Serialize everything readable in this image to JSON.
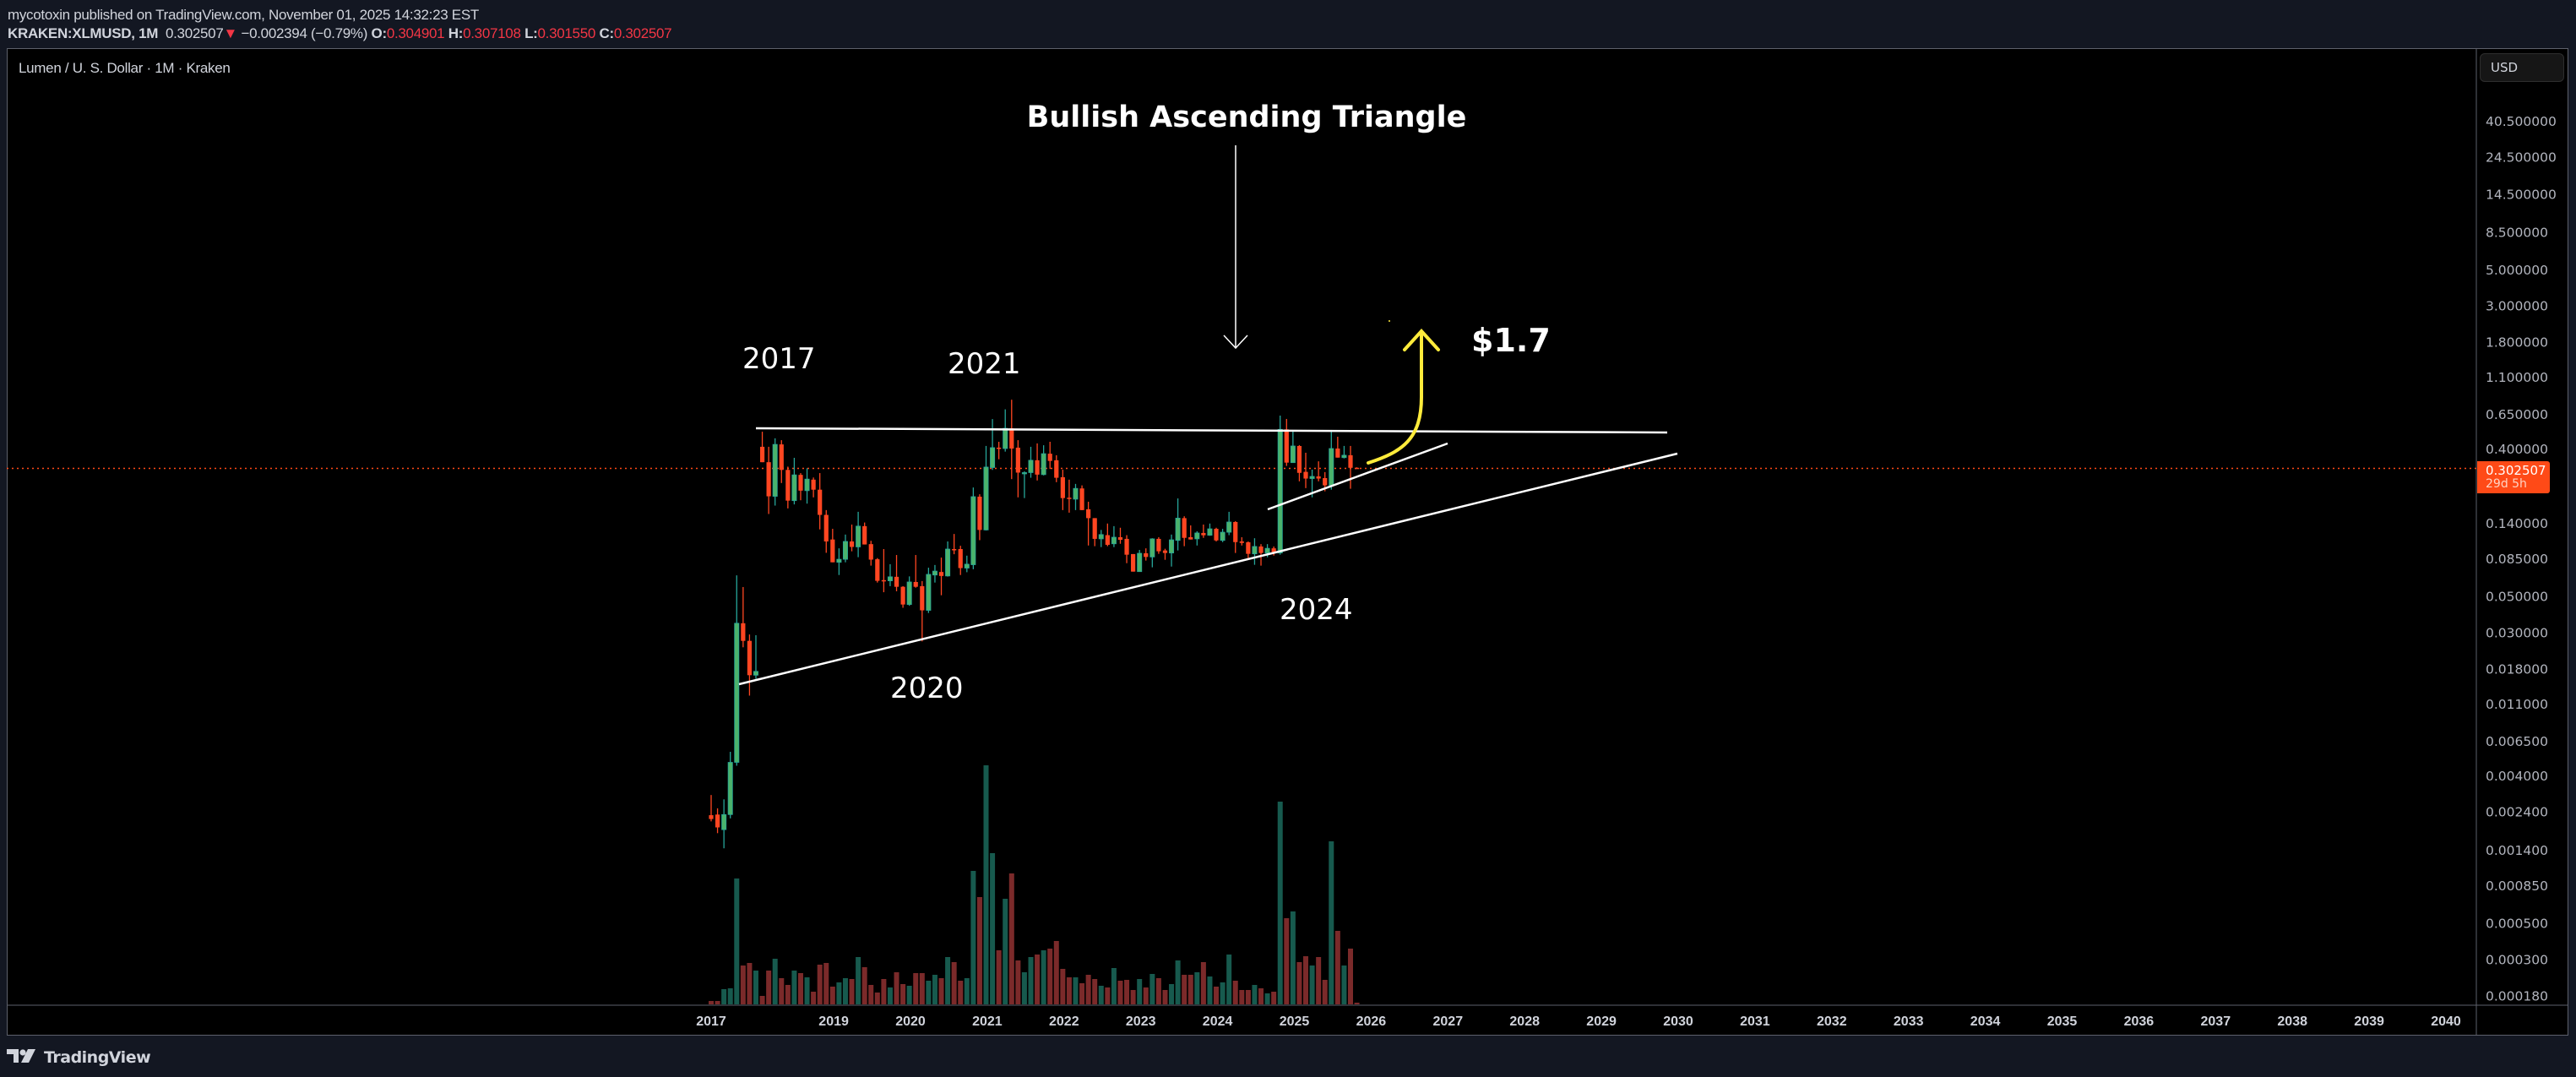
{
  "header": {
    "published": "mycotoxin published on TradingView.com, November 01, 2025 14:32:23 EST",
    "symbol": "KRAKEN:XLMUSD, 1M",
    "last": "0.302507",
    "change": "−0.002394 (−0.79%)",
    "o_label": "O:",
    "o": "0.304901",
    "h_label": "H:",
    "h": "0.307108",
    "l_label": "L:",
    "l": "0.301550",
    "c_label": "C:",
    "c": "0.302507"
  },
  "legend": "Lumen / U. S. Dollar · 1M · Kraken",
  "currency_button": "USD",
  "price_badge": {
    "price": "0.302507",
    "countdown": "29d 5h"
  },
  "footer": {
    "logo": "TradingView"
  },
  "colors": {
    "up": "#4bb36b",
    "up_wick": "#26a69a",
    "down": "#ff4621",
    "vol_up": "#175a4e",
    "vol_down": "#7b2a2a",
    "price_line": "#ff4a17",
    "annotation": "#ffffff",
    "arrow": "#ffeb3b"
  },
  "annotations": {
    "title": "Bullish Ascending Triangle",
    "target": "$1.7",
    "y2017": "2017",
    "y2021": "2021",
    "y2020": "2020",
    "y2024": "2024"
  },
  "chart_data": {
    "type": "candlestick",
    "interval": "1M",
    "scale": "log",
    "price_axis": [
      "40.500000",
      "24.500000",
      "14.500000",
      "8.500000",
      "5.000000",
      "3.000000",
      "1.800000",
      "1.100000",
      "0.650000",
      "0.400000",
      "0.140000",
      "0.085000",
      "0.050000",
      "0.030000",
      "0.018000",
      "0.011000",
      "0.006500",
      "0.004000",
      "0.002400",
      "0.001400",
      "0.000850",
      "0.000500",
      "0.000300",
      "0.000180"
    ],
    "time_axis": [
      "2017",
      "2019",
      "2020",
      "2021",
      "2022",
      "2023",
      "2024",
      "2025",
      "2026",
      "2027",
      "2028",
      "2029",
      "2030",
      "2031",
      "2032",
      "2033",
      "2034",
      "2035",
      "2036",
      "2037",
      "2038",
      "2039",
      "2040"
    ],
    "last_price": 0.302507,
    "ohlc": [
      [
        0.00228,
        0.00303,
        0.00209,
        0.00216
      ],
      [
        0.0023,
        0.00251,
        0.00177,
        0.00192
      ],
      [
        0.00186,
        0.00285,
        0.00143,
        0.0023
      ],
      [
        0.0023,
        0.00557,
        0.00218,
        0.0048
      ],
      [
        0.0048,
        0.067,
        0.00458,
        0.0341
      ],
      [
        0.0341,
        0.0568,
        0.0243,
        0.0266
      ],
      [
        0.0266,
        0.0291,
        0.0123,
        0.0164
      ],
      [
        0.0164,
        0.0288,
        0.0156,
        0.0173
      ],
      [
        0.41,
        0.507,
        0.33,
        0.33
      ],
      [
        0.33,
        0.41,
        0.159,
        0.204
      ],
      [
        0.204,
        0.462,
        0.179,
        0.424
      ],
      [
        0.424,
        0.45,
        0.246,
        0.296
      ],
      [
        0.296,
        0.31,
        0.172,
        0.192
      ],
      [
        0.192,
        0.351,
        0.182,
        0.276
      ],
      [
        0.276,
        0.283,
        0.193,
        0.221
      ],
      [
        0.221,
        0.303,
        0.184,
        0.26
      ],
      [
        0.258,
        0.266,
        0.201,
        0.224
      ],
      [
        0.224,
        0.283,
        0.128,
        0.157
      ],
      [
        0.157,
        0.168,
        0.092,
        0.108
      ],
      [
        0.111,
        0.129,
        0.0805,
        0.0805
      ],
      [
        0.0805,
        0.098,
        0.0673,
        0.084
      ],
      [
        0.084,
        0.119,
        0.0805,
        0.108
      ],
      [
        0.108,
        0.137,
        0.094,
        0.1
      ],
      [
        0.1,
        0.164,
        0.0865,
        0.134
      ],
      [
        0.134,
        0.141,
        0.1035,
        0.1035
      ],
      [
        0.104,
        0.109,
        0.0768,
        0.0836
      ],
      [
        0.084,
        0.0854,
        0.0605,
        0.062
      ],
      [
        0.0626,
        0.097,
        0.0528,
        0.062
      ],
      [
        0.062,
        0.0784,
        0.0575,
        0.0656
      ],
      [
        0.0656,
        0.0892,
        0.0535,
        0.057
      ],
      [
        0.057,
        0.0575,
        0.0424,
        0.0444
      ],
      [
        0.0444,
        0.066,
        0.0436,
        0.061
      ],
      [
        0.061,
        0.0892,
        0.0563,
        0.057
      ],
      [
        0.0575,
        0.0618,
        0.0264,
        0.0409
      ],
      [
        0.0409,
        0.0746,
        0.0394,
        0.0679
      ],
      [
        0.0673,
        0.0775,
        0.0605,
        0.0711
      ],
      [
        0.0702,
        0.086,
        0.0506,
        0.0664
      ],
      [
        0.0664,
        0.108,
        0.0658,
        0.097
      ],
      [
        0.097,
        0.12,
        0.0902,
        0.0957
      ],
      [
        0.097,
        0.1016,
        0.0673,
        0.0742
      ],
      [
        0.0742,
        0.0884,
        0.07,
        0.0784
      ],
      [
        0.0778,
        0.231,
        0.073,
        0.203
      ],
      [
        0.203,
        0.21,
        0.11,
        0.127
      ],
      [
        0.127,
        0.415,
        0.126,
        0.308
      ],
      [
        0.306,
        0.606,
        0.296,
        0.405
      ],
      [
        0.405,
        0.44,
        0.344,
        0.4
      ],
      [
        0.4,
        0.695,
        0.383,
        0.532
      ],
      [
        0.532,
        0.796,
        0.26,
        0.4
      ],
      [
        0.405,
        0.45,
        0.201,
        0.285
      ],
      [
        0.282,
        0.29,
        0.199,
        0.285
      ],
      [
        0.285,
        0.41,
        0.265,
        0.339
      ],
      [
        0.339,
        0.43,
        0.255,
        0.277
      ],
      [
        0.277,
        0.419,
        0.274,
        0.372
      ],
      [
        0.372,
        0.44,
        0.3,
        0.336
      ],
      [
        0.339,
        0.364,
        0.249,
        0.265
      ],
      [
        0.267,
        0.297,
        0.168,
        0.199
      ],
      [
        0.2,
        0.258,
        0.162,
        0.199
      ],
      [
        0.196,
        0.243,
        0.168,
        0.228
      ],
      [
        0.228,
        0.238,
        0.168,
        0.168
      ],
      [
        0.17,
        0.189,
        0.102,
        0.15
      ],
      [
        0.15,
        0.15,
        0.101,
        0.112
      ],
      [
        0.112,
        0.127,
        0.0997,
        0.119
      ],
      [
        0.118,
        0.139,
        0.101,
        0.103
      ],
      [
        0.1045,
        0.134,
        0.0997,
        0.1146
      ],
      [
        0.1146,
        0.131,
        0.1045,
        0.1105
      ],
      [
        0.112,
        0.118,
        0.0795,
        0.0896
      ],
      [
        0.0904,
        0.0904,
        0.0706,
        0.0706
      ],
      [
        0.0706,
        0.0958,
        0.0706,
        0.0914
      ],
      [
        0.0914,
        0.098,
        0.0825,
        0.0868
      ],
      [
        0.0868,
        0.113,
        0.075,
        0.112
      ],
      [
        0.112,
        0.1146,
        0.0907,
        0.094
      ],
      [
        0.0951,
        0.0974,
        0.0834,
        0.0918
      ],
      [
        0.0918,
        0.119,
        0.0758,
        0.1105
      ],
      [
        0.1096,
        0.198,
        0.0951,
        0.15
      ],
      [
        0.15,
        0.154,
        0.101,
        0.1136
      ],
      [
        0.1146,
        0.1354,
        0.111,
        0.111
      ],
      [
        0.112,
        0.1246,
        0.102,
        0.1217
      ],
      [
        0.1217,
        0.137,
        0.1136,
        0.1178
      ],
      [
        0.1178,
        0.139,
        0.117,
        0.129
      ],
      [
        0.129,
        0.131,
        0.108,
        0.1096
      ],
      [
        0.1096,
        0.129,
        0.107,
        0.123
      ],
      [
        0.123,
        0.164,
        0.118,
        0.142
      ],
      [
        0.142,
        0.1437,
        0.0918,
        0.107
      ],
      [
        0.108,
        0.1146,
        0.102,
        0.1058
      ],
      [
        0.1067,
        0.108,
        0.0854,
        0.0907
      ],
      [
        0.0907,
        0.113,
        0.0777,
        0.1006
      ],
      [
        0.1006,
        0.104,
        0.0768,
        0.0918
      ],
      [
        0.0918,
        0.104,
        0.0864,
        0.098
      ],
      [
        0.098,
        0.1006,
        0.0885,
        0.0918
      ],
      [
        0.0918,
        0.636,
        0.0896,
        0.524
      ],
      [
        0.524,
        0.607,
        0.313,
        0.328
      ],
      [
        0.328,
        0.514,
        0.328,
        0.4146
      ],
      [
        0.4146,
        0.42,
        0.252,
        0.284
      ],
      [
        0.288,
        0.377,
        0.229,
        0.262
      ],
      [
        0.262,
        0.297,
        0.201,
        0.27
      ],
      [
        0.27,
        0.334,
        0.252,
        0.262
      ],
      [
        0.2637,
        0.287,
        0.219,
        0.238
      ],
      [
        0.238,
        0.52,
        0.224,
        0.4
      ],
      [
        0.4,
        0.4725,
        0.352,
        0.352
      ],
      [
        0.352,
        0.415,
        0.348,
        0.364
      ],
      [
        0.364,
        0.415,
        0.227,
        0.3049
      ],
      [
        0.304901,
        0.307108,
        0.30155,
        0.302507
      ]
    ],
    "volume_relative": [
      12,
      12,
      54,
      57,
      447,
      138,
      147,
      120,
      30,
      120,
      162,
      93,
      69,
      120,
      111,
      96,
      45,
      141,
      147,
      63,
      78,
      93,
      90,
      168,
      132,
      69,
      42,
      90,
      60,
      114,
      72,
      66,
      111,
      111,
      84,
      105,
      93,
      168,
      150,
      84,
      93,
      474,
      381,
      849,
      537,
      192,
      375,
      465,
      156,
      114,
      168,
      177,
      192,
      198,
      225,
      126,
      96,
      96,
      75,
      105,
      90,
      66,
      60,
      129,
      84,
      87,
      51,
      90,
      60,
      108,
      93,
      51,
      72,
      156,
      105,
      105,
      114,
      150,
      99,
      63,
      78,
      177,
      84,
      51,
      51,
      69,
      57,
      39,
      45,
      720,
      306,
      330,
      150,
      171,
      138,
      168,
      87,
      579,
      261,
      138,
      198,
      6
    ]
  }
}
